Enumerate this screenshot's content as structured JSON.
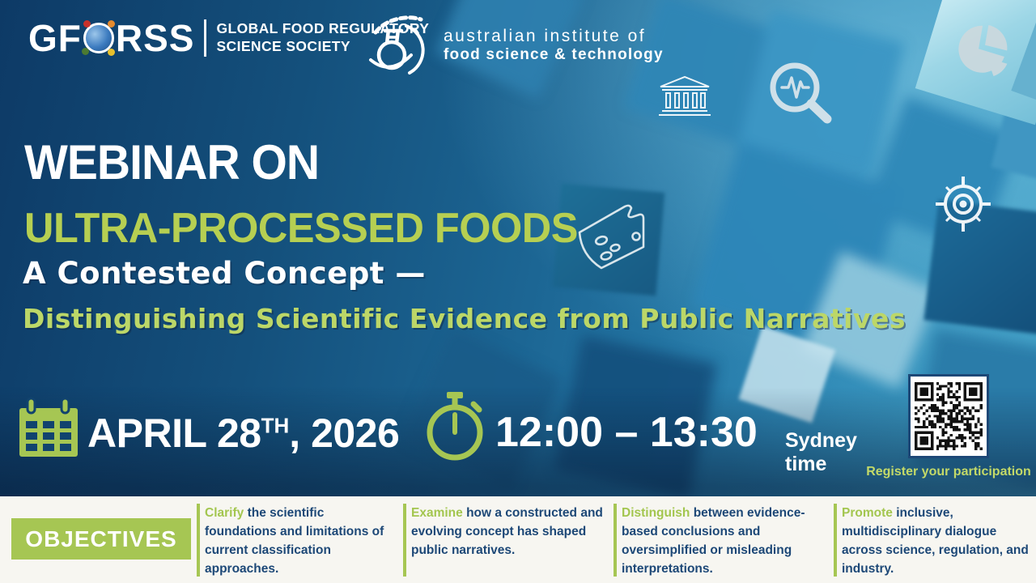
{
  "logos": {
    "gforss": {
      "wordmark_left": "GF",
      "wordmark_right": "RSS",
      "tagline_line1": "GLOBAL FOOD REGULATORY",
      "tagline_line2": "SCIENCE SOCIETY"
    },
    "aifst": {
      "line1": "australian institute of",
      "line2": "food science & technology"
    }
  },
  "title": {
    "kicker": "WEBINAR ON",
    "topic": "ULTRA-PROCESSED FOODS",
    "subtitle_line1": "A Contested Concept —",
    "subtitle_line2": "Distinguishing Scientific Evidence from Public Narratives"
  },
  "event": {
    "date_main": "APRIL 28",
    "date_suffix": "TH",
    "date_rest": ", 2026",
    "time": "12:00 – 13:30",
    "timezone": "Sydney time"
  },
  "registration": {
    "label": "Register your participation"
  },
  "objectives": {
    "heading": "OBJECTIVES",
    "items": [
      {
        "keyword": "Clarify",
        "text": "the scientific foundations and limitations of current classification approaches."
      },
      {
        "keyword": "Examine",
        "text": "how a constructed and evolving concept has shaped public narratives."
      },
      {
        "keyword": "Distinguish",
        "text": "between evidence-based conclusions and oversimplified or misleading interpretations."
      },
      {
        "keyword": "Promote",
        "text": "inclusive, multidisciplinary dialogue across science, regulation, and industry."
      }
    ]
  },
  "colors": {
    "accent_green": "#a6c653",
    "title_green": "#b6cf52",
    "handwriting_green": "#bcd768",
    "navy_text": "#1d4877",
    "strip_background": "#f7f6f1",
    "background_deep_blue": "#0d3a66",
    "background_light_blue": "#3f9dc2"
  }
}
